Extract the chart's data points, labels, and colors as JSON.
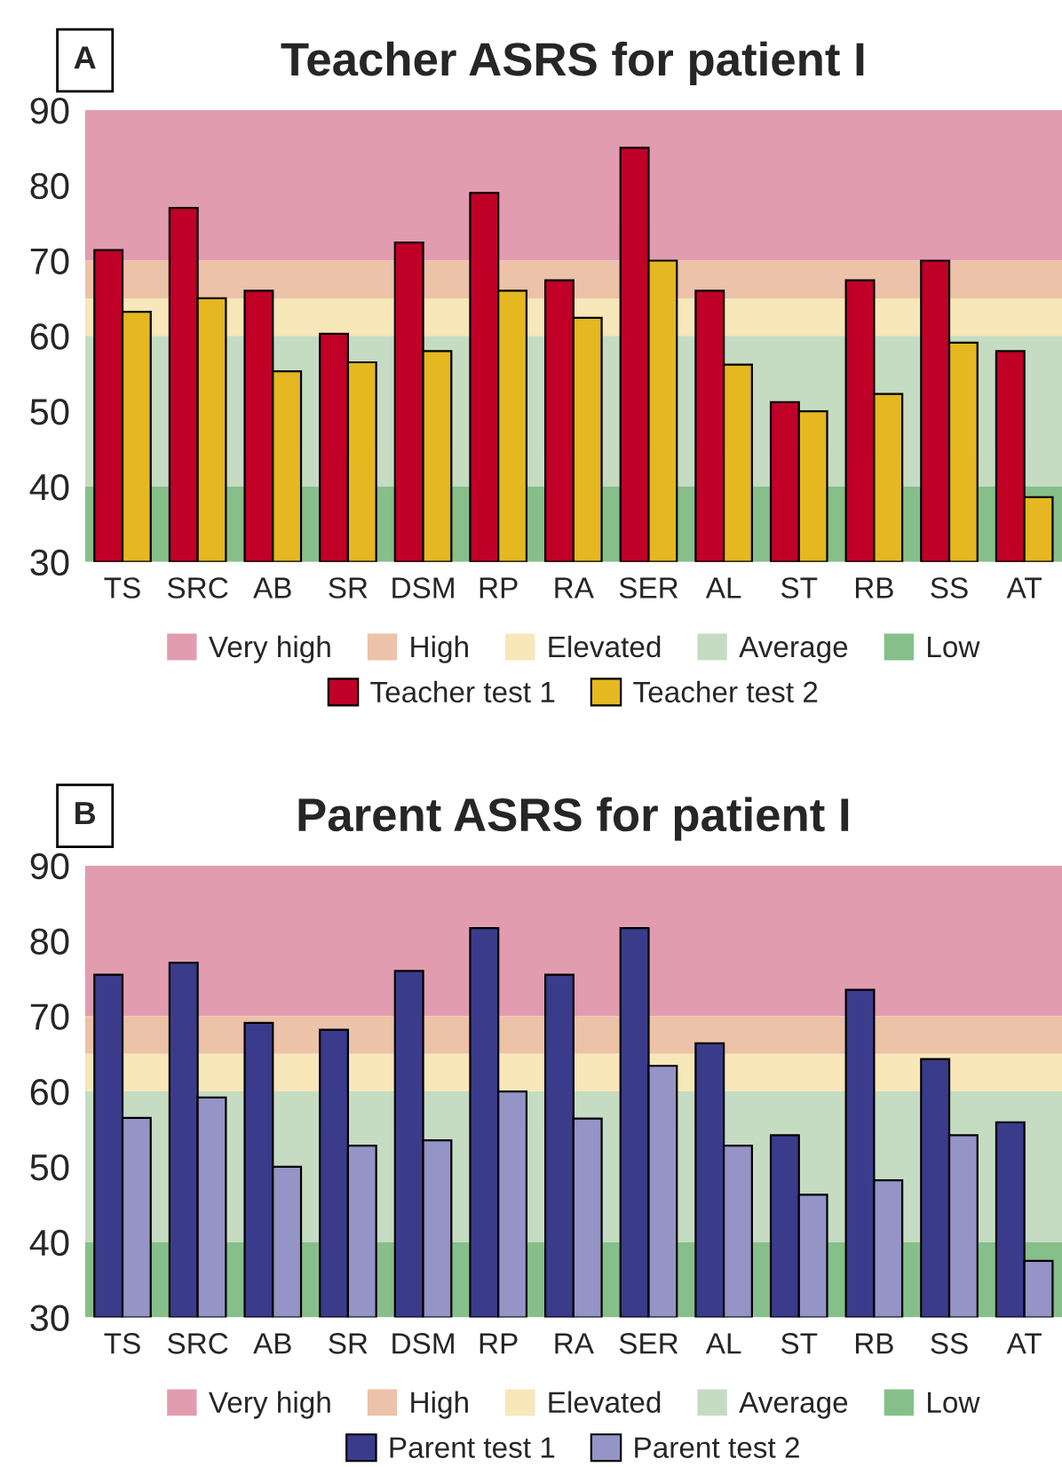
{
  "chart_data": [
    {
      "type": "bar",
      "title": "Teacher ASRS for patient I",
      "annotations": [
        "A"
      ],
      "categories": [
        "TS",
        "SRC",
        "AB",
        "SR",
        "DSM",
        "RP",
        "RA",
        "SER",
        "AL",
        "ST",
        "RB",
        "SS",
        "AT"
      ],
      "series": [
        {
          "name": "Teacher test 1",
          "color": "#c00026",
          "values": [
            71.4,
            77,
            66,
            60.3,
            72.4,
            79,
            67.4,
            85,
            66,
            51.2,
            67.4,
            70,
            58
          ]
        },
        {
          "name": "Teacher test 2",
          "color": "#e5b821",
          "values": [
            63.2,
            65,
            55.3,
            56.5,
            58,
            66,
            62.4,
            70,
            56.2,
            50,
            52.3,
            59.1,
            38.6
          ]
        }
      ],
      "bands": [
        {
          "axis": "y",
          "from": 70,
          "to": 90,
          "label": "Very high",
          "color": "#e29caf"
        },
        {
          "axis": "y",
          "from": 65,
          "to": 70,
          "label": "High",
          "color": "#ecc2a9"
        },
        {
          "axis": "y",
          "from": 60,
          "to": 65,
          "label": "Elevated",
          "color": "#f7e7b9"
        },
        {
          "axis": "y",
          "from": 40,
          "to": 60,
          "label": "Average",
          "color": "#c5dcc3"
        },
        {
          "axis": "y",
          "from": 30,
          "to": 40,
          "label": "Low",
          "color": "#86bf8a"
        }
      ],
      "ylim": [
        30,
        90
      ],
      "yticks": [
        30,
        40,
        50,
        60,
        70,
        80,
        90
      ],
      "grid": false,
      "legend": "bottom"
    },
    {
      "type": "bar",
      "title": "Parent ASRS for patient I",
      "annotations": [
        "B"
      ],
      "categories": [
        "TS",
        "SRC",
        "AB",
        "SR",
        "DSM",
        "RP",
        "RA",
        "SER",
        "AL",
        "ST",
        "RB",
        "SS",
        "AT"
      ],
      "series": [
        {
          "name": "Parent test 1",
          "color": "#3a3b8b",
          "values": [
            75.5,
            77.1,
            69.1,
            68.2,
            76,
            81.7,
            75.5,
            81.7,
            66.4,
            54.2,
            73.5,
            64.3,
            55.9
          ]
        },
        {
          "name": "Parent test 2",
          "color": "#9594c6",
          "values": [
            56.5,
            59.2,
            50,
            52.8,
            53.5,
            60,
            56.4,
            63.4,
            52.8,
            46.3,
            48.2,
            54.2,
            37.5
          ]
        }
      ],
      "bands": [
        {
          "axis": "y",
          "from": 70,
          "to": 90,
          "label": "Very high",
          "color": "#e29caf"
        },
        {
          "axis": "y",
          "from": 65,
          "to": 70,
          "label": "High",
          "color": "#ecc2a9"
        },
        {
          "axis": "y",
          "from": 60,
          "to": 65,
          "label": "Elevated",
          "color": "#f7e7b9"
        },
        {
          "axis": "y",
          "from": 40,
          "to": 60,
          "label": "Average",
          "color": "#c5dcc3"
        },
        {
          "axis": "y",
          "from": 30,
          "to": 40,
          "label": "Low",
          "color": "#86bf8a"
        }
      ],
      "ylim": [
        30,
        90
      ],
      "yticks": [
        30,
        40,
        50,
        60,
        70,
        80,
        90
      ],
      "grid": false,
      "legend": "bottom"
    }
  ]
}
